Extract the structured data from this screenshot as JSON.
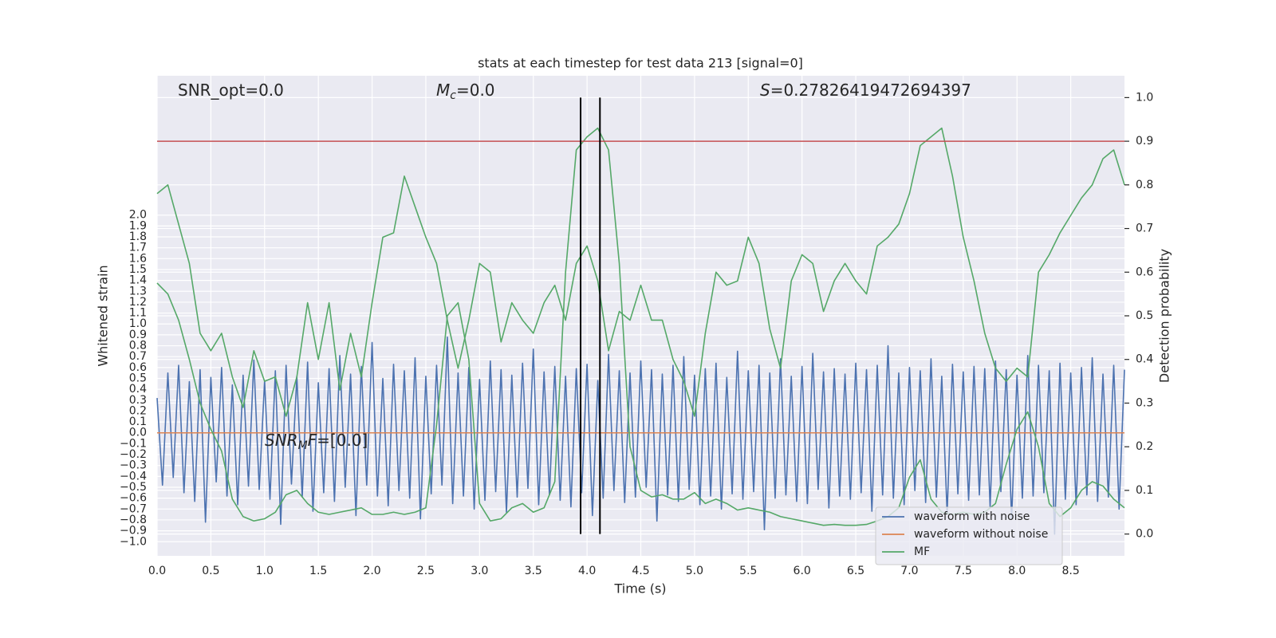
{
  "chart_data": {
    "type": "line",
    "title": "stats at each timestep for test data 213 [signal=0]",
    "x_label": "Time (s)",
    "y_label": "Whitened strain",
    "y2_label": "Detection probability",
    "xlim": [
      0,
      9
    ],
    "ylim": [
      -1.13,
      3.28
    ],
    "y2lim": [
      -0.05,
      1.05
    ],
    "grid": true,
    "legend": "lower right",
    "xticks": [
      {
        "value": 0,
        "label": "0.0"
      },
      0.5,
      {
        "value": 1,
        "label": "1.0"
      },
      1.5,
      {
        "value": 2,
        "label": "2.0"
      },
      2.5,
      {
        "value": 3,
        "label": "3.0"
      },
      3.5,
      {
        "value": 4,
        "label": "4.0"
      },
      4.5,
      {
        "value": 5,
        "label": "5.0"
      },
      5.5,
      {
        "value": 6,
        "label": "6.0"
      },
      6.5,
      {
        "value": 7,
        "label": "7.0"
      },
      7.5,
      {
        "value": 8,
        "label": "8.0"
      },
      8.5
    ],
    "yticks": [
      {
        "value": -1.0,
        "label": "−1.0"
      },
      {
        "value": -0.9,
        "label": "−0.9"
      },
      {
        "value": -0.8,
        "label": "−0.8"
      },
      {
        "value": -0.7,
        "label": "−0.7"
      },
      {
        "value": -0.6,
        "label": "−0.6"
      },
      {
        "value": -0.5,
        "label": "−0.5"
      },
      {
        "value": -0.4,
        "label": "−0.4"
      },
      {
        "value": -0.3,
        "label": "−0.3"
      },
      {
        "value": -0.2,
        "label": "−0.2"
      },
      {
        "value": -0.1,
        "label": "−0.1"
      },
      {
        "value": 0,
        "label": "0.0"
      },
      0.1,
      0.2,
      0.3,
      0.4,
      0.5,
      0.6,
      0.7,
      0.8,
      0.9,
      {
        "value": 1,
        "label": "1.0"
      },
      1.1,
      1.2,
      1.3,
      1.4,
      1.5,
      1.6,
      1.7,
      1.8,
      1.9,
      {
        "value": 2,
        "label": "2.0"
      }
    ],
    "y2ticks": [
      {
        "value": 0,
        "label": "0.0"
      },
      0.1,
      0.2,
      0.3,
      0.4,
      0.5,
      0.6,
      0.7,
      0.8,
      0.9,
      {
        "value": 1,
        "label": "1.0"
      }
    ],
    "series": [
      {
        "name": "waveform with noise",
        "color": "#4c72b0",
        "x": [
          0,
          0.05,
          0.1,
          0.15,
          0.2,
          0.25,
          0.3,
          0.35,
          0.4,
          0.45,
          0.5,
          0.55,
          0.6,
          0.65,
          0.7,
          0.75,
          0.8,
          0.85,
          0.9,
          0.95,
          1,
          1.05,
          1.1,
          1.15,
          1.2,
          1.25,
          1.3,
          1.35,
          1.4,
          1.45,
          1.5,
          1.55,
          1.6,
          1.65,
          1.7,
          1.75,
          1.8,
          1.85,
          1.9,
          1.95,
          2,
          2.05,
          2.1,
          2.15,
          2.2,
          2.25,
          2.3,
          2.35,
          2.4,
          2.45,
          2.5,
          2.55,
          2.6,
          2.65,
          2.7,
          2.75,
          2.8,
          2.85,
          2.9,
          2.95,
          3,
          3.05,
          3.1,
          3.15,
          3.2,
          3.25,
          3.3,
          3.35,
          3.4,
          3.45,
          3.5,
          3.55,
          3.6,
          3.65,
          3.7,
          3.75,
          3.8,
          3.85,
          3.9,
          3.95,
          4,
          4.05,
          4.1,
          4.15,
          4.2,
          4.25,
          4.3,
          4.35,
          4.4,
          4.45,
          4.5,
          4.55,
          4.6,
          4.65,
          4.7,
          4.75,
          4.8,
          4.85,
          4.9,
          4.95,
          5,
          5.05,
          5.1,
          5.15,
          5.2,
          5.25,
          5.3,
          5.35,
          5.4,
          5.45,
          5.5,
          5.55,
          5.6,
          5.65,
          5.7,
          5.75,
          5.8,
          5.85,
          5.9,
          5.95,
          6,
          6.05,
          6.1,
          6.15,
          6.2,
          6.25,
          6.3,
          6.35,
          6.4,
          6.45,
          6.5,
          6.55,
          6.6,
          6.65,
          6.7,
          6.75,
          6.8,
          6.85,
          6.9,
          6.95,
          7,
          7.05,
          7.1,
          7.15,
          7.2,
          7.25,
          7.3,
          7.35,
          7.4,
          7.45,
          7.5,
          7.55,
          7.6,
          7.65,
          7.7,
          7.75,
          7.8,
          7.85,
          7.9,
          7.95,
          8,
          8.05,
          8.1,
          8.15,
          8.2,
          8.25,
          8.3,
          8.35,
          8.4,
          8.45,
          8.5,
          8.55,
          8.6,
          8.65,
          8.7,
          8.75,
          8.8,
          8.85,
          8.9,
          8.95,
          9
        ],
        "values": [
          0.32,
          -0.48,
          0.55,
          -0.41,
          0.62,
          -0.55,
          0.47,
          -0.63,
          0.58,
          -0.82,
          0.51,
          -0.45,
          0.6,
          -0.58,
          0.44,
          -0.66,
          0.53,
          -0.49,
          0.67,
          -0.52,
          0.48,
          -0.61,
          0.57,
          -0.84,
          0.62,
          -0.47,
          0.52,
          -0.59,
          0.65,
          -0.72,
          0.46,
          -0.55,
          0.59,
          -0.63,
          0.71,
          -0.5,
          0.54,
          -0.76,
          0.61,
          -0.48,
          0.83,
          -0.58,
          0.5,
          -0.67,
          0.63,
          -0.53,
          0.57,
          -0.6,
          0.69,
          -0.79,
          0.52,
          -0.56,
          0.62,
          -0.48,
          0.88,
          -0.65,
          0.55,
          -0.58,
          0.6,
          -0.7,
          0.49,
          -0.62,
          0.66,
          -0.54,
          0.58,
          -0.73,
          0.53,
          -0.59,
          0.64,
          -0.51,
          0.77,
          -0.66,
          0.56,
          -0.57,
          0.61,
          -0.62,
          0.52,
          -0.68,
          0.59,
          -0.55,
          0.63,
          -0.76,
          0.48,
          -0.6,
          0.72,
          -0.53,
          0.57,
          -0.64,
          0.55,
          -0.59,
          0.66,
          -0.5,
          0.58,
          -0.81,
          0.54,
          -0.57,
          0.62,
          -0.63,
          0.7,
          -0.52,
          0.53,
          -0.66,
          0.59,
          -0.58,
          0.64,
          -0.7,
          0.51,
          -0.56,
          0.75,
          -0.61,
          0.57,
          -0.54,
          0.62,
          -0.89,
          0.55,
          -0.6,
          0.68,
          -0.57,
          0.52,
          -0.63,
          0.61,
          -0.65,
          0.73,
          -0.52,
          0.56,
          -0.69,
          0.59,
          -0.58,
          0.54,
          -0.61,
          0.64,
          -0.55,
          0.58,
          -0.72,
          0.62,
          -0.57,
          0.8,
          -0.6,
          0.55,
          -0.66,
          0.6,
          -0.53,
          0.57,
          -0.64,
          0.68,
          -0.59,
          0.52,
          -0.74,
          0.63,
          -0.56,
          0.56,
          -0.62,
          0.61,
          -0.57,
          0.59,
          -0.68,
          0.66,
          -0.54,
          0.58,
          -0.79,
          0.53,
          -0.6,
          0.71,
          -0.58,
          0.62,
          -0.55,
          0.57,
          -0.93,
          0.64,
          -0.61,
          0.55,
          -0.66,
          0.6,
          -0.57,
          0.69,
          -0.63,
          0.54,
          -0.59,
          0.62,
          -0.7,
          0.58
        ]
      },
      {
        "name": "waveform without noise",
        "color": "#dd8452",
        "x": [
          0,
          9
        ],
        "values": [
          0,
          0
        ]
      },
      {
        "name": "MF",
        "color": "#55a868",
        "axis": "y2",
        "x": [
          0,
          0.1,
          0.2,
          0.3,
          0.4,
          0.5,
          0.6,
          0.7,
          0.8,
          0.9,
          1,
          1.1,
          1.2,
          1.3,
          1.4,
          1.5,
          1.6,
          1.7,
          1.8,
          1.9,
          2,
          2.1,
          2.2,
          2.3,
          2.4,
          2.5,
          2.6,
          2.7,
          2.8,
          2.9,
          3,
          3.1,
          3.2,
          3.3,
          3.4,
          3.5,
          3.6,
          3.7,
          3.8,
          3.9,
          4,
          4.1,
          4.2,
          4.3,
          4.4,
          4.5,
          4.6,
          4.7,
          4.8,
          4.9,
          5,
          5.1,
          5.2,
          5.3,
          5.4,
          5.5,
          5.6,
          5.7,
          5.8,
          5.9,
          6,
          6.1,
          6.2,
          6.3,
          6.4,
          6.5,
          6.6,
          6.7,
          6.8,
          6.9,
          7,
          7.1,
          7.2,
          7.3,
          7.4,
          7.5,
          7.6,
          7.7,
          7.8,
          7.9,
          8,
          8.1,
          8.2,
          8.3,
          8.4,
          8.5,
          8.6,
          8.7,
          8.8,
          8.9,
          9
        ],
        "values": [
          0.575,
          0.55,
          0.49,
          0.4,
          0.3,
          0.24,
          0.19,
          0.08,
          0.04,
          0.03,
          0.035,
          0.05,
          0.09,
          0.1,
          0.07,
          0.05,
          0.045,
          0.05,
          0.055,
          0.06,
          0.045,
          0.045,
          0.05,
          0.045,
          0.05,
          0.06,
          0.25,
          0.5,
          0.53,
          0.4,
          0.07,
          0.03,
          0.035,
          0.06,
          0.07,
          0.05,
          0.06,
          0.12,
          0.6,
          0.88,
          0.91,
          0.93,
          0.88,
          0.62,
          0.2,
          0.1,
          0.085,
          0.09,
          0.08,
          0.08,
          0.095,
          0.07,
          0.08,
          0.07,
          0.055,
          0.06,
          0.055,
          0.05,
          0.04,
          0.035,
          0.03,
          0.025,
          0.02,
          0.022,
          0.02,
          0.02,
          0.022,
          0.03,
          0.04,
          0.06,
          0.13,
          0.17,
          0.08,
          0.05,
          0.045,
          0.05,
          0.045,
          0.05,
          0.07,
          0.16,
          0.24,
          0.28,
          0.2,
          0.07,
          0.04,
          0.06,
          0.1,
          0.12,
          0.11,
          0.08,
          0.06
        ]
      },
      {
        "color": "#55a868",
        "axis": "y2",
        "x": [
          0,
          0.1,
          0.2,
          0.3,
          0.4,
          0.5,
          0.6,
          0.7,
          0.8,
          0.9,
          1,
          1.1,
          1.2,
          1.3,
          1.4,
          1.5,
          1.6,
          1.7,
          1.8,
          1.9,
          2,
          2.1,
          2.2,
          2.3,
          2.4,
          2.5,
          2.6,
          2.7,
          2.8,
          2.9,
          3,
          3.1,
          3.2,
          3.3,
          3.4,
          3.5,
          3.6,
          3.7,
          3.8,
          3.9,
          4,
          4.1,
          4.2,
          4.3,
          4.4,
          4.5,
          4.6,
          4.7,
          4.8,
          4.9,
          5,
          5.1,
          5.2,
          5.3,
          5.4,
          5.5,
          5.6,
          5.7,
          5.8,
          5.9,
          6,
          6.1,
          6.2,
          6.3,
          6.4,
          6.5,
          6.6,
          6.7,
          6.8,
          6.9,
          7,
          7.1,
          7.2,
          7.3,
          7.4,
          7.5,
          7.6,
          7.7,
          7.8,
          7.9,
          8,
          8.1,
          8.2,
          8.3,
          8.4,
          8.5,
          8.6,
          8.7,
          8.8,
          8.9,
          9
        ],
        "values": [
          0.78,
          0.8,
          0.71,
          0.62,
          0.46,
          0.42,
          0.46,
          0.36,
          0.29,
          0.42,
          0.35,
          0.36,
          0.27,
          0.36,
          0.53,
          0.4,
          0.53,
          0.33,
          0.46,
          0.36,
          0.53,
          0.68,
          0.69,
          0.82,
          0.75,
          0.68,
          0.62,
          0.49,
          0.38,
          0.49,
          0.62,
          0.6,
          0.44,
          0.53,
          0.49,
          0.46,
          0.53,
          0.57,
          0.49,
          0.62,
          0.66,
          0.58,
          0.42,
          0.51,
          0.49,
          0.57,
          0.49,
          0.49,
          0.4,
          0.35,
          0.27,
          0.46,
          0.6,
          0.57,
          0.58,
          0.68,
          0.62,
          0.47,
          0.38,
          0.58,
          0.64,
          0.62,
          0.51,
          0.58,
          0.62,
          0.58,
          0.55,
          0.66,
          0.68,
          0.71,
          0.78,
          0.89,
          0.91,
          0.93,
          0.82,
          0.68,
          0.58,
          0.46,
          0.38,
          0.35,
          0.38,
          0.36,
          0.6,
          0.64,
          0.69,
          0.73,
          0.77,
          0.8,
          0.86,
          0.88,
          0.8
        ]
      }
    ],
    "hline": {
      "y": 0.9,
      "axis": "y2",
      "color": "#c44e52"
    },
    "vlines": {
      "x": [
        3.94,
        4.12
      ],
      "ymin": 0,
      "ymax": 1,
      "axis": "y2",
      "color": "#000000"
    },
    "annotations": [
      {
        "parts": [
          {
            "text": "SNR_opt=0.0",
            "style": "normal"
          }
        ]
      },
      {
        "parts": [
          {
            "text": "M",
            "style": "italic"
          },
          {
            "text": "c",
            "style": "sub"
          },
          {
            "text": "=0.0",
            "style": "normal"
          }
        ]
      },
      {
        "parts": [
          {
            "text": "S",
            "style": "italic"
          },
          {
            "text": "=0.27826419472694397",
            "style": "normal"
          }
        ]
      },
      {
        "parts": [
          {
            "text": "SNR",
            "style": "italic"
          },
          {
            "text": "M",
            "style": "sub"
          },
          {
            "text": "F",
            "style": "italic"
          },
          {
            "text": "=[0.0]",
            "style": "normal"
          }
        ]
      }
    ]
  }
}
